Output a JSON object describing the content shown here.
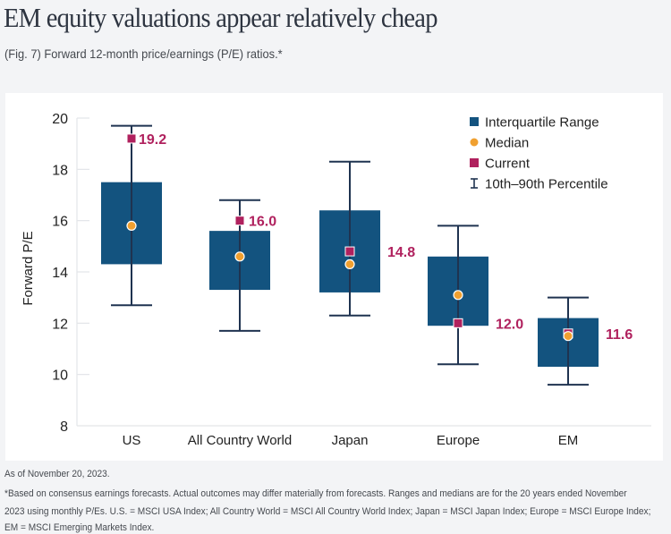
{
  "header": {
    "title": "EM equity valuations appear relatively cheap",
    "subtitle": "(Fig. 7) Forward 12-month price/earnings (P/E) ratios.*"
  },
  "colors": {
    "iqr": "#13537f",
    "median": "#f0a030",
    "current": "#b0215e",
    "whisker": "#1f3350",
    "axis": "#e3e5e8",
    "text": "#222222"
  },
  "chart_data": {
    "type": "box",
    "title": "EM equity valuations appear relatively cheap",
    "subtitle": "(Fig. 7) Forward 12-month price/earnings (P/E) ratios.*",
    "xlabel": "",
    "ylabel": "Forward P/E",
    "ylim": [
      8,
      20
    ],
    "yticks": [
      8,
      10,
      12,
      14,
      16,
      18,
      20
    ],
    "grid": false,
    "legend_position": "top-right",
    "legend": [
      "Interquartile Range",
      "Median",
      "Current",
      "10th–90th Percentile"
    ],
    "categories": [
      "US",
      "All Country World",
      "Japan",
      "Europe",
      "EM"
    ],
    "series": [
      {
        "name": "10th Percentile",
        "values": [
          12.7,
          11.7,
          12.3,
          10.4,
          9.6
        ]
      },
      {
        "name": "25th Percentile",
        "values": [
          14.3,
          13.3,
          13.2,
          11.9,
          10.3
        ]
      },
      {
        "name": "Median",
        "values": [
          15.8,
          14.6,
          14.3,
          13.1,
          11.5
        ]
      },
      {
        "name": "75th Percentile",
        "values": [
          17.5,
          15.6,
          16.4,
          14.6,
          12.2
        ]
      },
      {
        "name": "90th Percentile",
        "values": [
          19.7,
          16.8,
          18.3,
          15.8,
          13.0
        ]
      },
      {
        "name": "Current",
        "values": [
          19.2,
          16.0,
          14.8,
          12.0,
          11.6
        ]
      }
    ],
    "current_labels": [
      "19.2",
      "16.0",
      "14.8",
      "12.0",
      "11.6"
    ]
  },
  "footnotes": {
    "as_of": "As of November 20, 2023.",
    "line1": "*Based on consensus earnings forecasts. Actual outcomes may differ materially from forecasts. Ranges and medians are for the 20 years ended November",
    "line2": "2023 using monthly P/Es. U.S. = MSCI USA Index; All Country World = MSCI All Country World Index; Japan = MSCI Japan Index; Europe = MSCI Europe Index;",
    "line3": "EM = MSCI Emerging Markets Index."
  }
}
